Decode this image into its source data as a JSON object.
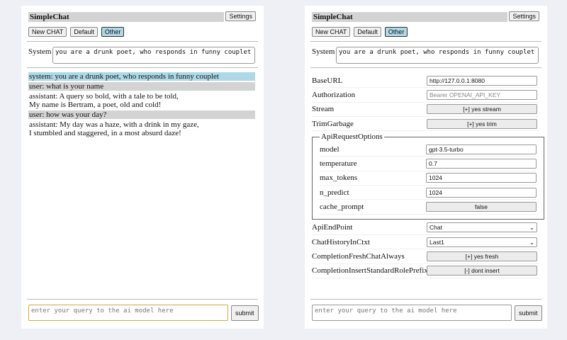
{
  "app_title": "SimpleChat",
  "settings_label": "Settings",
  "buttons": {
    "new_chat": "New CHAT",
    "default": "Default",
    "other": "Other"
  },
  "system_label": "System",
  "system_prompt": "you are a drunk poet, who responds in funny couplet",
  "messages": [
    {
      "role": "system",
      "text": "system: you are a drunk poet, who responds in funny couplet"
    },
    {
      "role": "user",
      "text": "user: what is your name"
    },
    {
      "role": "assistant",
      "lines": [
        "assistant: A query so bold, with a tale to be told,",
        "My name is Bertram, a poet, old and cold!"
      ]
    },
    {
      "role": "user",
      "text": "user: how was your day?"
    },
    {
      "role": "assistant",
      "lines": [
        "assistant: My day was a haze, with a drink in my gaze,",
        "I stumbled and staggered, in a most absurd daze!"
      ]
    }
  ],
  "query_placeholder": "enter your query to the ai model here",
  "submit_label": "submit",
  "settings": {
    "base_url": {
      "label": "BaseURL",
      "value": "http://127.0.0.1:8080"
    },
    "authorization": {
      "label": "Authorization",
      "placeholder": "Bearer OPENAI_API_KEY"
    },
    "stream": {
      "label": "Stream",
      "value": "[+] yes stream"
    },
    "trim": {
      "label": "TrimGarbage",
      "value": "[+] yes trim"
    },
    "api_options": {
      "legend": "ApiRequestOptions",
      "model": {
        "label": "model",
        "value": "gpt-3.5-turbo"
      },
      "temperature": {
        "label": "temperature",
        "value": "0.7"
      },
      "max_tokens": {
        "label": "max_tokens",
        "value": "1024"
      },
      "n_predict": {
        "label": "n_predict",
        "value": "1024"
      },
      "cache_prompt": {
        "label": "cache_prompt",
        "value": "false"
      }
    },
    "endpoint": {
      "label": "ApiEndPoint",
      "value": "Chat"
    },
    "history": {
      "label": "ChatHistoryInCtxt",
      "value": "Last1"
    },
    "fresh": {
      "label": "CompletionFreshChatAlways",
      "value": "[+] yes fresh"
    },
    "prefix": {
      "label": "CompletionInsertStandardRolePrefix",
      "value": "[-] dont insert"
    }
  }
}
